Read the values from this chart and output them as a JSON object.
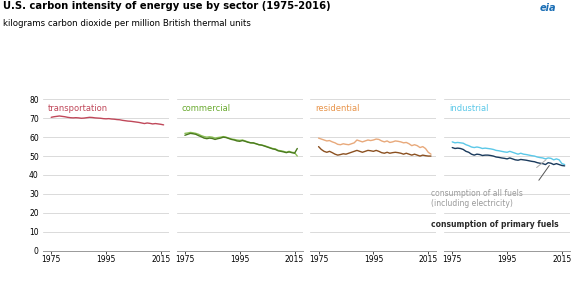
{
  "title": "U.S. carbon intensity of energy use by sector (1975-2016)",
  "subtitle": "kilograms carbon dioxide per million British thermal units",
  "years": [
    1975,
    1976,
    1977,
    1978,
    1979,
    1980,
    1981,
    1982,
    1983,
    1984,
    1985,
    1986,
    1987,
    1988,
    1989,
    1990,
    1991,
    1992,
    1993,
    1994,
    1995,
    1996,
    1997,
    1998,
    1999,
    2000,
    2001,
    2002,
    2003,
    2004,
    2005,
    2006,
    2007,
    2008,
    2009,
    2010,
    2011,
    2012,
    2013,
    2014,
    2015,
    2016
  ],
  "transportation": [
    70.5,
    70.8,
    71.0,
    71.2,
    71.0,
    70.8,
    70.5,
    70.3,
    70.2,
    70.3,
    70.2,
    70.0,
    70.1,
    70.3,
    70.5,
    70.4,
    70.2,
    70.1,
    70.0,
    69.8,
    69.7,
    69.8,
    69.6,
    69.5,
    69.3,
    69.2,
    68.9,
    68.7,
    68.5,
    68.4,
    68.2,
    68.0,
    67.8,
    67.5,
    67.2,
    67.5,
    67.3,
    67.0,
    67.2,
    67.0,
    66.8,
    66.5
  ],
  "commercial_all": [
    62.0,
    62.2,
    62.5,
    62.3,
    62.0,
    61.5,
    60.8,
    60.3,
    60.0,
    60.2,
    60.0,
    59.5,
    59.8,
    60.0,
    60.3,
    60.0,
    59.5,
    59.0,
    58.8,
    58.5,
    58.3,
    58.5,
    58.0,
    57.5,
    57.0,
    56.8,
    56.5,
    56.0,
    55.8,
    55.5,
    55.0,
    54.5,
    54.0,
    53.8,
    53.0,
    52.8,
    52.5,
    52.0,
    52.5,
    52.0,
    51.8,
    50.0
  ],
  "commercial_primary": [
    61.0,
    61.5,
    62.0,
    61.8,
    61.5,
    60.8,
    60.2,
    59.5,
    59.2,
    59.5,
    59.3,
    58.8,
    59.2,
    59.5,
    60.0,
    59.8,
    59.3,
    58.8,
    58.5,
    58.0,
    57.8,
    58.2,
    57.8,
    57.3,
    57.0,
    57.0,
    56.5,
    56.0,
    55.8,
    55.3,
    54.8,
    54.3,
    53.8,
    53.5,
    52.8,
    52.5,
    52.2,
    51.8,
    52.2,
    51.8,
    51.5,
    54.0
  ],
  "residential_all": [
    59.5,
    59.0,
    58.5,
    58.0,
    58.2,
    57.5,
    57.0,
    56.2,
    56.0,
    56.5,
    56.2,
    56.0,
    56.5,
    57.0,
    58.5,
    58.0,
    57.5,
    58.0,
    58.5,
    58.2,
    58.5,
    59.0,
    58.8,
    58.0,
    57.5,
    58.0,
    57.2,
    57.5,
    58.0,
    57.8,
    57.5,
    57.0,
    57.2,
    56.5,
    55.5,
    56.0,
    55.5,
    54.5,
    55.0,
    54.0,
    52.0,
    51.0
  ],
  "residential_primary": [
    55.0,
    53.5,
    52.5,
    52.0,
    52.5,
    51.8,
    51.0,
    50.5,
    50.8,
    51.2,
    51.0,
    51.5,
    52.0,
    52.5,
    53.0,
    52.5,
    52.0,
    52.5,
    53.0,
    52.8,
    52.5,
    53.0,
    52.5,
    51.8,
    51.5,
    52.0,
    51.5,
    51.8,
    52.0,
    51.8,
    51.5,
    51.0,
    51.5,
    51.0,
    50.5,
    51.0,
    50.5,
    50.0,
    50.5,
    50.2,
    50.0,
    50.0
  ],
  "industrial_all": [
    57.5,
    57.0,
    57.2,
    57.0,
    56.8,
    56.0,
    55.5,
    54.8,
    54.5,
    54.8,
    54.5,
    54.0,
    54.2,
    54.0,
    53.8,
    53.5,
    53.0,
    52.8,
    52.5,
    52.2,
    52.0,
    52.5,
    52.0,
    51.5,
    51.0,
    51.5,
    51.0,
    50.8,
    50.5,
    50.2,
    50.0,
    49.5,
    49.2,
    49.0,
    48.5,
    49.0,
    48.8,
    48.0,
    48.5,
    48.0,
    46.0,
    45.5
  ],
  "industrial_primary": [
    54.5,
    54.0,
    54.2,
    54.0,
    53.5,
    52.5,
    52.0,
    51.0,
    50.5,
    51.0,
    50.8,
    50.3,
    50.5,
    50.5,
    50.3,
    50.0,
    49.5,
    49.3,
    49.0,
    48.8,
    48.5,
    49.0,
    48.5,
    48.0,
    47.8,
    48.2,
    48.0,
    47.8,
    47.5,
    47.2,
    47.0,
    46.5,
    46.2,
    46.0,
    45.5,
    46.5,
    46.2,
    45.5,
    46.0,
    45.5,
    45.0,
    44.8
  ],
  "transportation_color": "#c0485a",
  "commercial_all_color": "#8cc057",
  "commercial_primary_color": "#4a7a1e",
  "residential_all_color": "#e8a97b",
  "residential_primary_color": "#8b5020",
  "industrial_all_color": "#5bc8e8",
  "industrial_primary_color": "#1a3a5c",
  "sector_label_colors": [
    "#c0485a",
    "#6aaa30",
    "#e8944a",
    "#5bc8e8"
  ],
  "sector_labels": [
    "transportation",
    "commercial",
    "residential",
    "industrial"
  ],
  "ylim": [
    0,
    80
  ],
  "yticks": [
    0,
    10,
    20,
    30,
    40,
    50,
    60,
    70,
    80
  ],
  "xticks": [
    1975,
    1995,
    2015
  ],
  "annotation_all": "consumption of all fuels\n(including electricity)",
  "annotation_primary": "consumption of primary fuels",
  "bg_color": "#ffffff",
  "grid_color": "#cccccc"
}
